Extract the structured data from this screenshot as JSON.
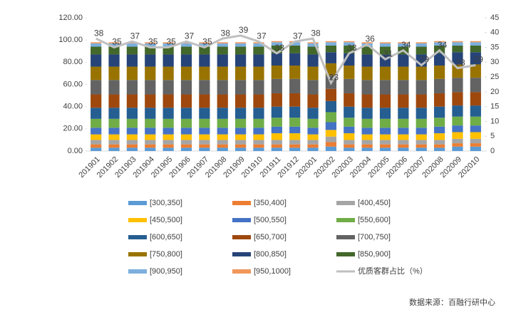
{
  "chart_data": {
    "type": "bar",
    "stacked": true,
    "categories": [
      "201901",
      "201902",
      "201903",
      "201904",
      "201905",
      "201906",
      "201907",
      "201908",
      "201909",
      "201910",
      "201911",
      "201912",
      "202001",
      "202002",
      "202003",
      "202004",
      "202005",
      "202006",
      "202007",
      "202008",
      "202009",
      "202010"
    ],
    "series": [
      {
        "name": "[300,350]",
        "color": "#5b9bd5",
        "values": [
          3,
          3,
          3,
          3,
          3,
          3,
          3,
          3,
          3,
          3,
          3,
          3,
          3,
          4,
          3,
          3,
          3,
          3,
          3,
          3,
          4,
          4
        ]
      },
      {
        "name": "[350,400]",
        "color": "#ed7d31",
        "values": [
          3,
          3,
          3,
          3,
          3,
          3,
          3,
          3,
          3,
          3,
          3,
          3,
          3,
          4,
          3,
          3,
          3,
          3,
          3,
          3,
          3,
          3
        ]
      },
      {
        "name": "[400,450]",
        "color": "#a5a5a5",
        "values": [
          4,
          4,
          4,
          4,
          4,
          4,
          4,
          4,
          4,
          4,
          4,
          4,
          4,
          5,
          4,
          4,
          4,
          4,
          4,
          4,
          4,
          4
        ]
      },
      {
        "name": "[450,500]",
        "color": "#ffc000",
        "values": [
          5,
          5,
          5,
          5,
          5,
          5,
          5,
          5,
          5,
          5,
          6,
          6,
          5,
          6,
          6,
          5,
          5,
          5,
          5,
          6,
          6,
          6
        ]
      },
      {
        "name": "[500,550]",
        "color": "#4472c4",
        "values": [
          6,
          6,
          6,
          6,
          6,
          6,
          6,
          6,
          6,
          6,
          6,
          6,
          6,
          7,
          6,
          6,
          6,
          6,
          6,
          6,
          6,
          6
        ]
      },
      {
        "name": "[550,600]",
        "color": "#70ad47",
        "values": [
          8,
          8,
          8,
          8,
          8,
          8,
          8,
          8,
          8,
          8,
          8,
          8,
          8,
          9,
          8,
          8,
          8,
          8,
          8,
          8,
          8,
          8
        ]
      },
      {
        "name": "[600,650]",
        "color": "#255e91",
        "values": [
          10,
          10,
          10,
          10,
          10,
          10,
          10,
          10,
          10,
          10,
          10,
          10,
          10,
          10,
          10,
          10,
          10,
          10,
          10,
          10,
          10,
          10
        ]
      },
      {
        "name": "[650,700]",
        "color": "#9e480e",
        "values": [
          12,
          12,
          12,
          12,
          12,
          12,
          12,
          12,
          12,
          12,
          12,
          12,
          12,
          11,
          12,
          12,
          12,
          12,
          12,
          12,
          12,
          12
        ]
      },
      {
        "name": "[700,750]",
        "color": "#636363",
        "values": [
          13,
          13,
          13,
          13,
          13,
          13,
          13,
          13,
          13,
          13,
          13,
          13,
          13,
          12,
          13,
          13,
          13,
          13,
          13,
          13,
          13,
          13
        ]
      },
      {
        "name": "[750,800]",
        "color": "#997300",
        "values": [
          12,
          12,
          12,
          12,
          12,
          12,
          12,
          12,
          12,
          12,
          12,
          12,
          12,
          11,
          12,
          12,
          12,
          12,
          12,
          12,
          12,
          12
        ]
      },
      {
        "name": "[800,850]",
        "color": "#264478",
        "values": [
          11,
          11,
          11,
          11,
          11,
          11,
          11,
          11,
          11,
          11,
          11,
          11,
          11,
          10,
          11,
          11,
          11,
          11,
          11,
          11,
          11,
          11
        ]
      },
      {
        "name": "[850,900]",
        "color": "#43682b",
        "values": [
          7,
          7,
          7,
          7,
          7,
          7,
          7,
          7,
          7,
          7,
          7,
          7,
          7,
          6,
          7,
          7,
          7,
          7,
          7,
          7,
          6,
          6
        ]
      },
      {
        "name": "[900,950]",
        "color": "#7cafdd",
        "values": [
          3,
          3,
          3,
          3,
          3,
          3,
          3,
          3,
          3,
          3,
          3,
          3,
          3,
          3,
          3,
          3,
          3,
          3,
          3,
          3,
          3,
          3
        ]
      },
      {
        "name": "[950,1000]",
        "color": "#f1975a",
        "values": [
          1,
          1,
          1,
          1,
          1,
          1,
          1,
          1,
          1,
          1,
          1,
          1,
          1,
          1,
          1,
          1,
          1,
          1,
          1,
          1,
          1,
          1
        ]
      },
      {
        "name": "优质客群占比（%）",
        "color": "#bfbfbf",
        "type": "line",
        "axis": "y2",
        "values": [
          38,
          35,
          37,
          35,
          35,
          37,
          35,
          38,
          39,
          37,
          33,
          37,
          38,
          23,
          33,
          36,
          31,
          34,
          29,
          34,
          28,
          29
        ]
      }
    ],
    "ylim": [
      0,
      120
    ],
    "yticks": [
      {
        "value": 0,
        "label": "0.00"
      },
      {
        "value": 20,
        "label": "20.00"
      },
      {
        "value": 40,
        "label": "40.00"
      },
      {
        "value": 60,
        "label": "60.00"
      },
      {
        "value": 80,
        "label": "80.00"
      },
      {
        "value": 100,
        "label": "100.00"
      },
      {
        "value": 120,
        "label": "120.00"
      }
    ],
    "y2lim": [
      0,
      45
    ],
    "y2ticks": [
      0,
      5,
      10,
      15,
      20,
      25,
      30,
      35,
      40,
      45
    ],
    "source": "数据来源：百融行研中心"
  }
}
